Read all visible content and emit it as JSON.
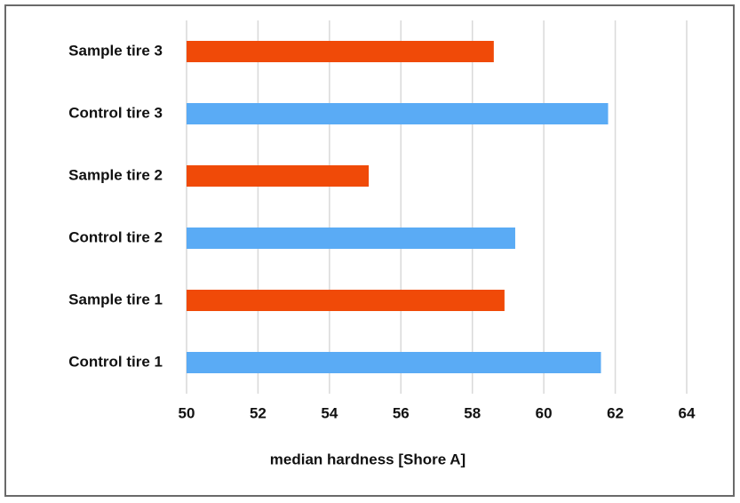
{
  "chart_data": {
    "type": "bar",
    "orientation": "horizontal",
    "x_label": "median hardness [Shore A]",
    "categories": [
      "Control tire 1",
      "Sample tire 1",
      "Control tire 2",
      "Sample tire 2",
      "Control tire 3",
      "Sample tire 3"
    ],
    "values": [
      61.6,
      58.9,
      59.2,
      55.1,
      61.8,
      58.6
    ],
    "colors": [
      "#5aabf5",
      "#f04a08",
      "#5aabf5",
      "#f04a08",
      "#5aabf5",
      "#f04a08"
    ],
    "xlim": [
      50,
      64
    ],
    "xticks": [
      50,
      52,
      54,
      56,
      58,
      60,
      62,
      64
    ],
    "grid": true
  }
}
